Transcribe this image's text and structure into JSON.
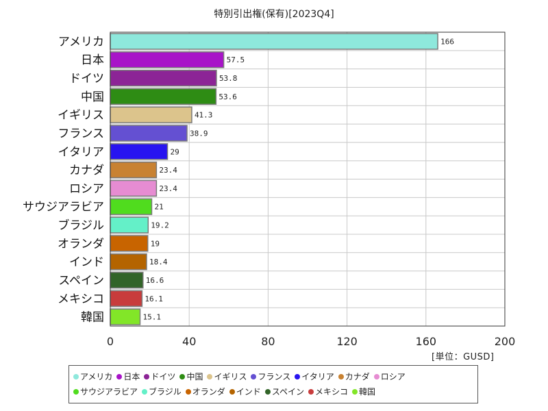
{
  "chart_data": {
    "type": "bar",
    "orientation": "horizontal",
    "title": "特別引出権(保有)[2023Q4]",
    "unit": "[単位：GUSD]",
    "xlim": [
      0,
      200
    ],
    "xticks": [
      0,
      40,
      80,
      120,
      160,
      200
    ],
    "grid": true,
    "legend_position": "bottom",
    "categories": [
      "アメリカ",
      "日本",
      "ドイツ",
      "中国",
      "イギリス",
      "フランス",
      "イタリア",
      "カナダ",
      "ロシア",
      "サウジアラビア",
      "ブラジル",
      "オランダ",
      "インド",
      "スペイン",
      "メキシコ",
      "韓国"
    ],
    "values": [
      166,
      57.5,
      53.8,
      53.6,
      41.3,
      38.9,
      29,
      23.4,
      23.4,
      21,
      19.2,
      19,
      18.4,
      16.6,
      16.1,
      15.1
    ],
    "value_labels": [
      "166",
      "57.5",
      "53.8",
      "53.6",
      "41.3",
      "38.9",
      "29",
      "23.4",
      "23.4",
      "21",
      "19.2",
      "19",
      "18.4",
      "16.6",
      "16.1",
      "15.1"
    ],
    "colors": [
      "#8ee8dc",
      "#a814c8",
      "#8c2496",
      "#2e8c14",
      "#dcc48c",
      "#6450d2",
      "#2814f0",
      "#c88232",
      "#e68cd2",
      "#50dc1e",
      "#64f0c8",
      "#c86400",
      "#b46400",
      "#326428",
      "#c83c3c",
      "#82e628"
    ]
  }
}
